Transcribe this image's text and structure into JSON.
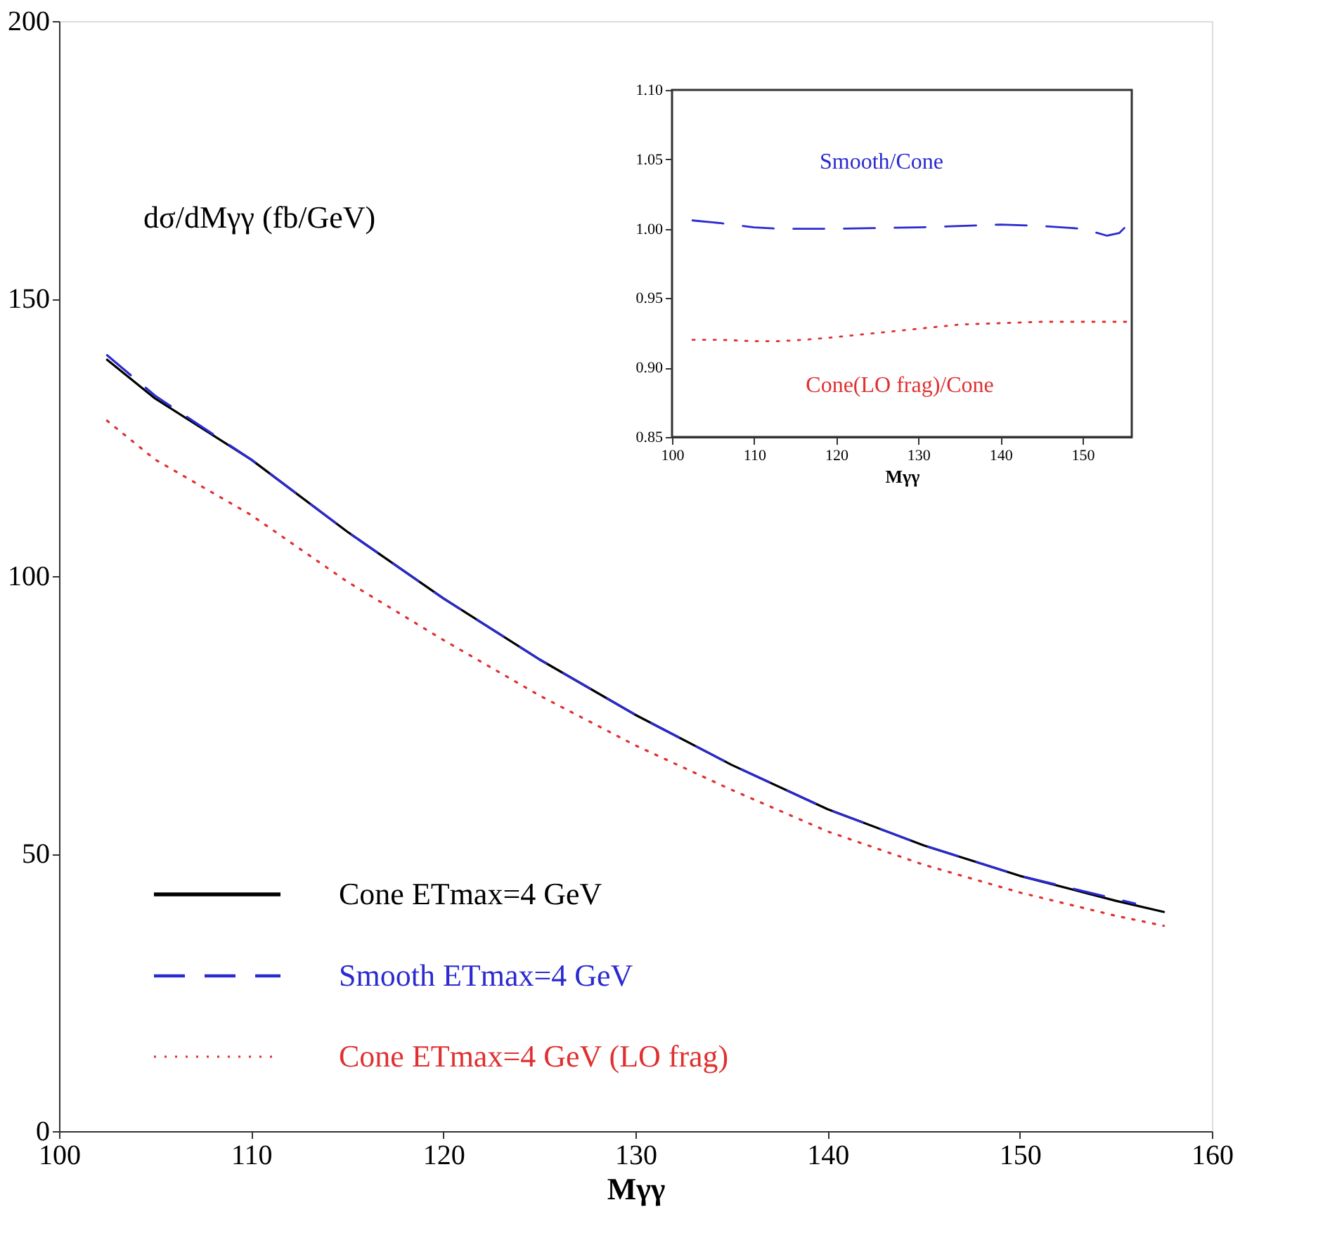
{
  "chart_data": [
    {
      "type": "line",
      "xlabel": "Mγγ",
      "ylabel": "dσ/dMγγ (fb/GeV)",
      "xlim": [
        100,
        160
      ],
      "ylim": [
        0,
        200
      ],
      "xticks": [
        100,
        110,
        120,
        130,
        140,
        150,
        160
      ],
      "yticks": [
        0,
        50,
        100,
        150,
        200
      ],
      "legend": "bottom left",
      "grid": false,
      "series": [
        {
          "name": "Cone ETmax=4 GeV",
          "color": "#000000",
          "line_style": "solid",
          "x": [
            102.5,
            105,
            110,
            115,
            120,
            125,
            130,
            135,
            140,
            145,
            150,
            155,
            157.5
          ],
          "values": [
            139,
            132,
            121,
            108,
            96,
            85,
            75,
            66,
            58,
            51.5,
            46,
            41.5,
            39.5
          ]
        },
        {
          "name": "Smooth ETmax=4 GeV",
          "color": "#2a2ad0",
          "line_style": "dashed",
          "x": [
            102.5,
            105,
            110,
            115,
            120,
            125,
            130,
            135,
            140,
            145,
            150,
            156
          ],
          "values": [
            139.8,
            132.5,
            121,
            108,
            96,
            85,
            75,
            66,
            58,
            51.5,
            46,
            41
          ]
        },
        {
          "name": "Cone ETmax=4 GeV (LO frag)",
          "color": "#e03030",
          "line_style": "dotted",
          "x": [
            102.5,
            105,
            110,
            115,
            120,
            125,
            130,
            135,
            140,
            145,
            150,
            155,
            157.5
          ],
          "values": [
            128,
            121,
            111,
            99,
            88.5,
            78.5,
            69.5,
            61.5,
            54,
            48,
            43,
            38.8,
            37
          ]
        }
      ]
    },
    {
      "type": "line",
      "xlabel": "Mγγ",
      "xlim": [
        100,
        156
      ],
      "ylim": [
        0.85,
        1.1
      ],
      "xticks": [
        100,
        110,
        120,
        130,
        140,
        150
      ],
      "yticks": [
        {
          "value": 0.85,
          "label": "0.85"
        },
        {
          "value": 0.9,
          "label": "0.90"
        },
        {
          "value": 0.95,
          "label": "0.95"
        },
        {
          "value": 1.0,
          "label": "1.00"
        },
        {
          "value": 1.05,
          "label": "1.05"
        },
        {
          "value": 1.1,
          "label": "1.10"
        }
      ],
      "grid": false,
      "series": [
        {
          "name": "Smooth/Cone",
          "color": "#2a2ad0",
          "line_style": "dashed",
          "x": [
            102.5,
            106,
            110,
            113,
            120,
            130,
            140,
            145,
            150,
            153,
            154.5,
            155.5,
            156
          ],
          "values": [
            1.006,
            1.004,
            1.001,
            1.0,
            1.0,
            1.001,
            1.003,
            1.002,
            1.0,
            0.995,
            0.997,
            1.003,
            1.009
          ]
        },
        {
          "name": "Cone(LO frag)/Cone",
          "color": "#e03030",
          "line_style": "dotted",
          "x": [
            102.5,
            106,
            110,
            113,
            116,
            120,
            125,
            130,
            135,
            140,
            145,
            150,
            155.5
          ],
          "values": [
            0.92,
            0.92,
            0.919,
            0.919,
            0.92,
            0.922,
            0.925,
            0.928,
            0.931,
            0.932,
            0.933,
            0.933,
            0.933
          ]
        }
      ]
    }
  ]
}
